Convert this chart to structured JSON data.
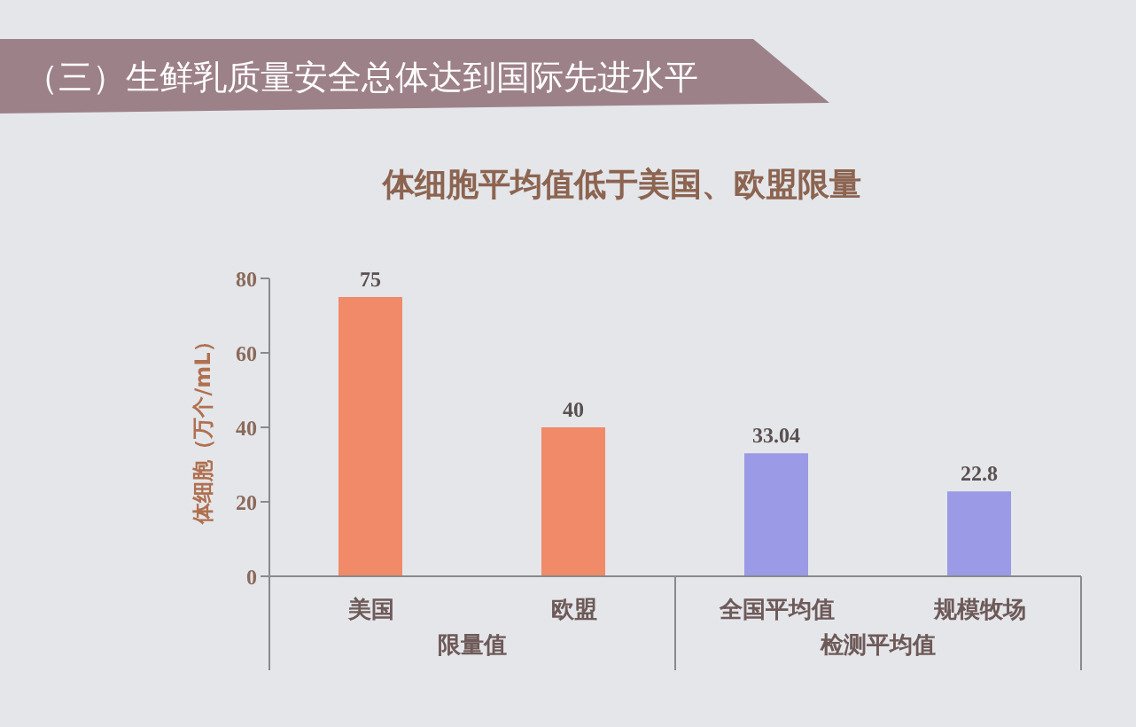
{
  "chart_data": {
    "type": "bar",
    "title": "（三）生鲜乳质量安全总体达到国际先进水平",
    "subtitle": "体细胞平均值低于美国、欧盟限量",
    "ylabel": "体细胞（万个/mL）",
    "categories": [
      "美国",
      "欧盟",
      "全国平均值",
      "规模牧场"
    ],
    "values": [
      75,
      40,
      33.04,
      22.8
    ],
    "colors": [
      "#f08a68",
      "#f08a68",
      "#9a9ae6",
      "#9a9ae6"
    ],
    "ylim": [
      0,
      80
    ],
    "yticks": [
      0,
      20,
      40,
      60,
      80
    ],
    "data_labels": true,
    "annotations": [
      "限量值",
      "检测平均值"
    ]
  }
}
